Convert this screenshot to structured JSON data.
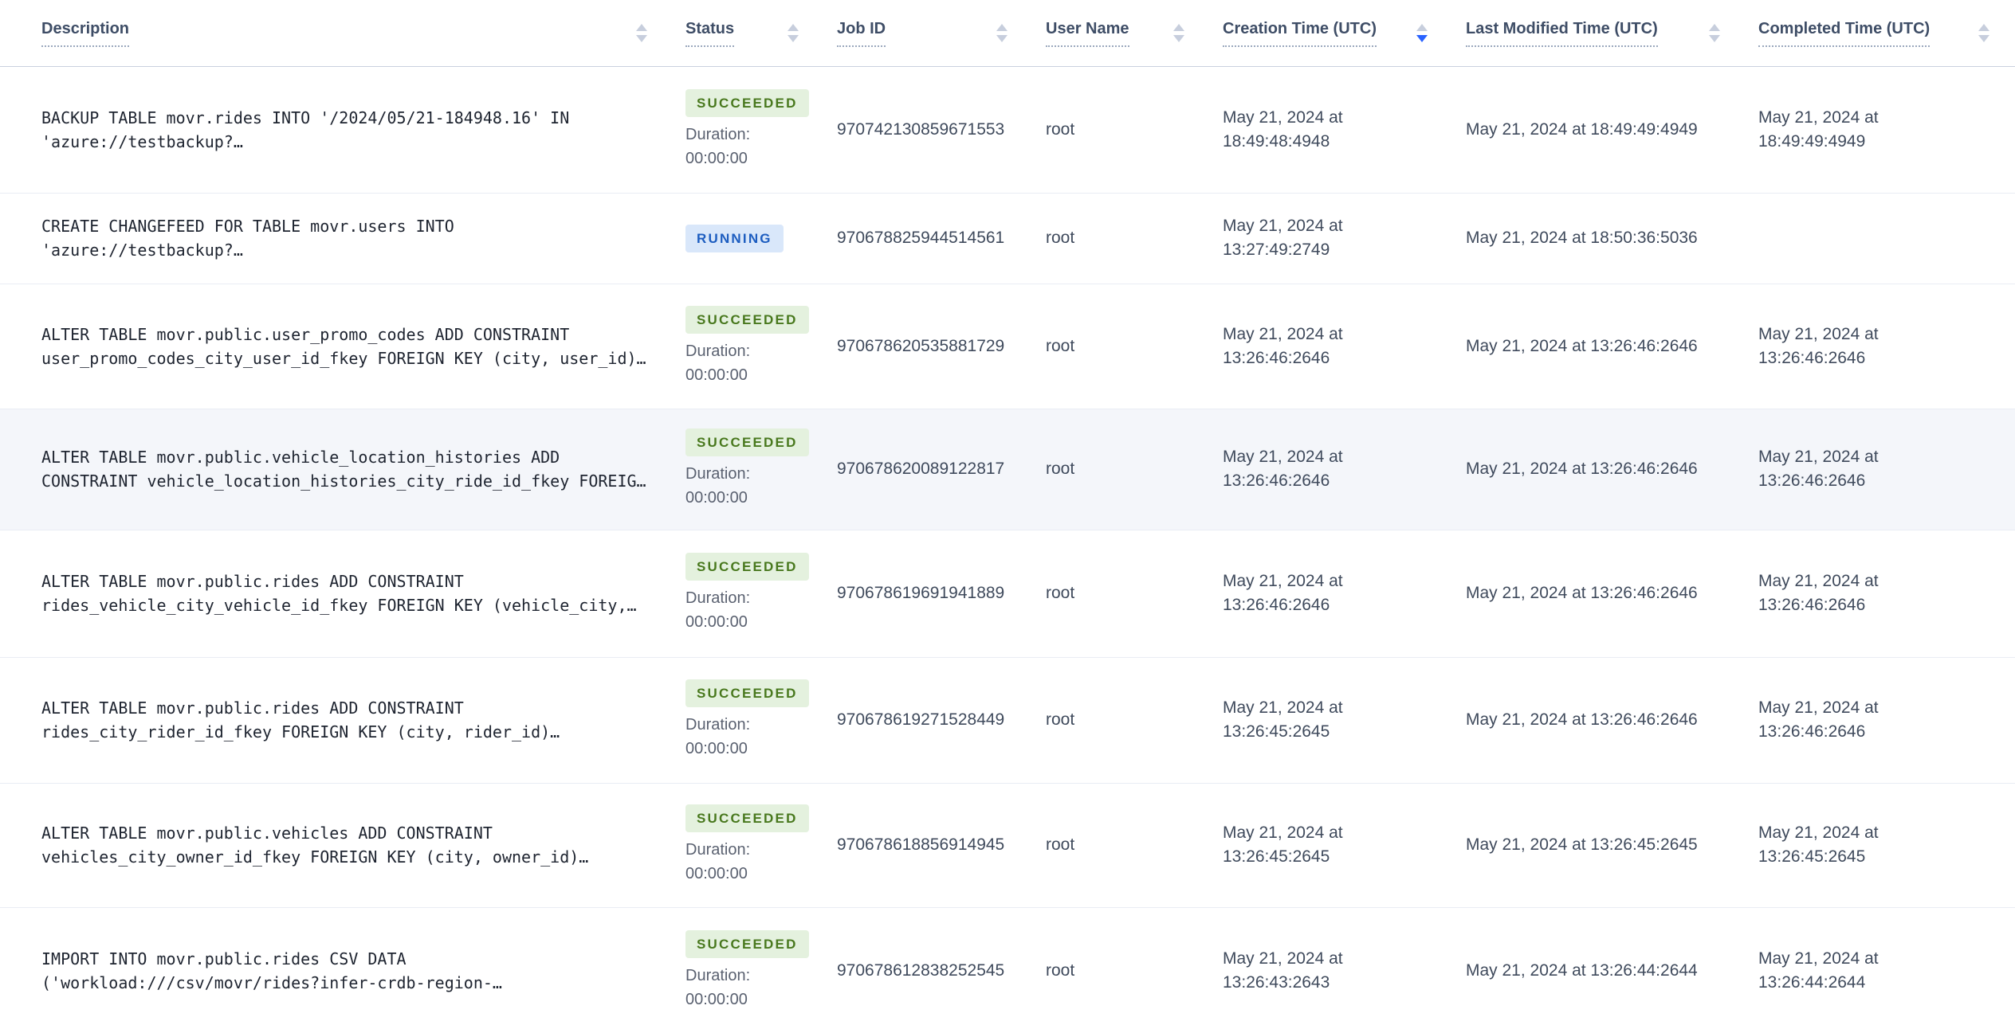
{
  "table": {
    "duration_label": "Duration:",
    "columns": [
      {
        "label": "Description",
        "sort": "none"
      },
      {
        "label": "Status",
        "sort": "none"
      },
      {
        "label": "Job ID",
        "sort": "none"
      },
      {
        "label": "User Name",
        "sort": "none"
      },
      {
        "label": "Creation Time (UTC)",
        "sort": "desc"
      },
      {
        "label": "Last Modified Time (UTC)",
        "sort": "none"
      },
      {
        "label": "Completed Time (UTC)",
        "sort": "none"
      }
    ],
    "jobs": [
      {
        "description_lines": [
          "BACKUP TABLE movr.rides INTO '/2024/05/21-184948.16' IN",
          "'azure://testbackup?…"
        ],
        "status": "SUCCEEDED",
        "duration": "00:00:00",
        "job_id": "970742130859671553",
        "user_name": "root",
        "creation_time": "May 21, 2024 at 18:49:48:4948",
        "last_modified_time": "May 21, 2024 at 18:49:49:4949",
        "completed_time": "May 21, 2024 at 18:49:49:4949",
        "highlighted": false
      },
      {
        "description_lines": [
          "CREATE CHANGEFEED FOR TABLE movr.users INTO",
          "'azure://testbackup?…"
        ],
        "status": "RUNNING",
        "duration": null,
        "job_id": "970678825944514561",
        "user_name": "root",
        "creation_time": "May 21, 2024 at 13:27:49:2749",
        "last_modified_time": "May 21, 2024 at 18:50:36:5036",
        "completed_time": "",
        "highlighted": false
      },
      {
        "description_lines": [
          "ALTER TABLE movr.public.user_promo_codes ADD CONSTRAINT",
          "user_promo_codes_city_user_id_fkey FOREIGN KEY (city, user_id)…"
        ],
        "status": "SUCCEEDED",
        "duration": "00:00:00",
        "job_id": "970678620535881729",
        "user_name": "root",
        "creation_time": "May 21, 2024 at 13:26:46:2646",
        "last_modified_time": "May 21, 2024 at 13:26:46:2646",
        "completed_time": "May 21, 2024 at 13:26:46:2646",
        "highlighted": false
      },
      {
        "description_lines": [
          "ALTER TABLE movr.public.vehicle_location_histories ADD",
          "CONSTRAINT vehicle_location_histories_city_ride_id_fkey FOREIG…"
        ],
        "status": "SUCCEEDED",
        "duration": "00:00:00",
        "job_id": "970678620089122817",
        "user_name": "root",
        "creation_time": "May 21, 2024 at 13:26:46:2646",
        "last_modified_time": "May 21, 2024 at 13:26:46:2646",
        "completed_time": "May 21, 2024 at 13:26:46:2646",
        "highlighted": true
      },
      {
        "description_lines": [
          "ALTER TABLE movr.public.rides ADD CONSTRAINT",
          "rides_vehicle_city_vehicle_id_fkey FOREIGN KEY (vehicle_city,…"
        ],
        "status": "SUCCEEDED",
        "duration": "00:00:00",
        "job_id": "970678619691941889",
        "user_name": "root",
        "creation_time": "May 21, 2024 at 13:26:46:2646",
        "last_modified_time": "May 21, 2024 at 13:26:46:2646",
        "completed_time": "May 21, 2024 at 13:26:46:2646",
        "highlighted": false
      },
      {
        "description_lines": [
          "ALTER TABLE movr.public.rides ADD CONSTRAINT",
          "rides_city_rider_id_fkey FOREIGN KEY (city, rider_id)…"
        ],
        "status": "SUCCEEDED",
        "duration": "00:00:00",
        "job_id": "970678619271528449",
        "user_name": "root",
        "creation_time": "May 21, 2024 at 13:26:45:2645",
        "last_modified_time": "May 21, 2024 at 13:26:46:2646",
        "completed_time": "May 21, 2024 at 13:26:46:2646",
        "highlighted": false
      },
      {
        "description_lines": [
          "ALTER TABLE movr.public.vehicles ADD CONSTRAINT",
          "vehicles_city_owner_id_fkey FOREIGN KEY (city, owner_id)…"
        ],
        "status": "SUCCEEDED",
        "duration": "00:00:00",
        "job_id": "970678618856914945",
        "user_name": "root",
        "creation_time": "May 21, 2024 at 13:26:45:2645",
        "last_modified_time": "May 21, 2024 at 13:26:45:2645",
        "completed_time": "May 21, 2024 at 13:26:45:2645",
        "highlighted": false
      },
      {
        "description_lines": [
          "IMPORT INTO movr.public.rides CSV DATA",
          "('workload:///csv/movr/rides?infer-crdb-region-…"
        ],
        "status": "SUCCEEDED",
        "duration": "00:00:00",
        "job_id": "970678612838252545",
        "user_name": "root",
        "creation_time": "May 21, 2024 at 13:26:43:2643",
        "last_modified_time": "May 21, 2024 at 13:26:44:2644",
        "completed_time": "May 21, 2024 at 13:26:44:2644",
        "highlighted": false
      }
    ]
  },
  "colors": {
    "succeeded_bg": "#e4f1de",
    "succeeded_text": "#48781d",
    "running_bg": "#d9e7fa",
    "running_text": "#1d5dc0",
    "active_sort": "#2962ff",
    "highlight_row_bg": "#f4f6fa"
  }
}
